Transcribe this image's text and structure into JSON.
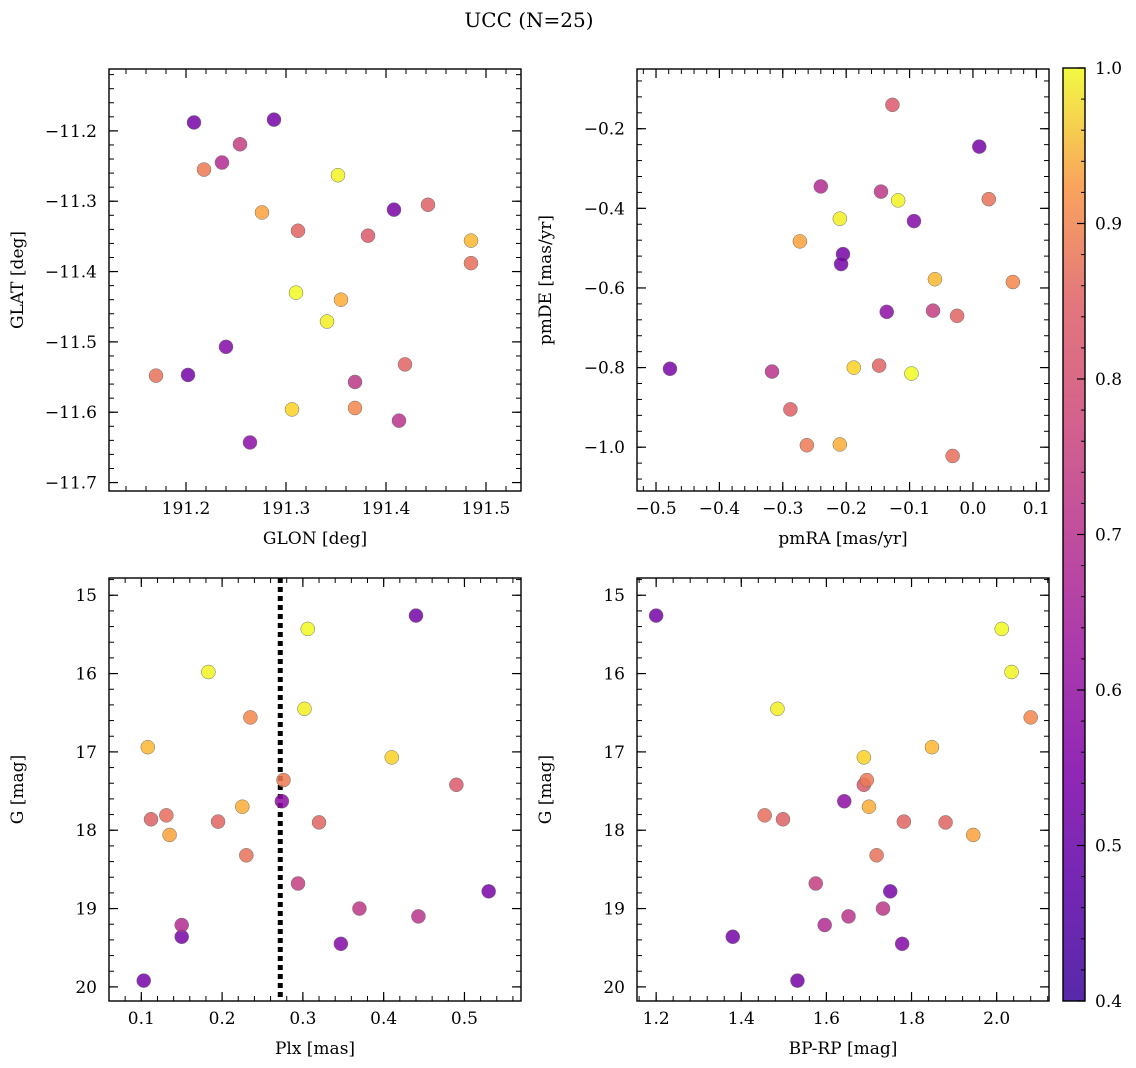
{
  "title": "UCC (N=25)",
  "chart_data": {
    "type": "scatter",
    "n_points": 25,
    "colorbar": {
      "colormap": "plasma",
      "min": 0.4,
      "max": 1.0,
      "ticks": [
        0.4,
        0.5,
        0.6,
        0.7,
        0.8,
        0.9,
        1.0
      ],
      "tick_labels": [
        "0.4",
        "0.5",
        "0.6",
        "0.7",
        "0.8",
        "0.9",
        "1.0"
      ]
    },
    "points": [
      {
        "glon": 191.208,
        "glat": -11.188,
        "pmra": -0.205,
        "pmde": -0.515,
        "plx": 0.44,
        "g": 15.26,
        "bprp": 1.2,
        "prob": 0.42
      },
      {
        "glon": 191.288,
        "glat": -11.184,
        "pmra": 0.01,
        "pmde": -0.245,
        "plx": 0.15,
        "g": 19.36,
        "bprp": 1.38,
        "prob": 0.42
      },
      {
        "glon": 191.202,
        "glat": -11.547,
        "pmra": -0.208,
        "pmde": -0.54,
        "plx": 0.103,
        "g": 19.92,
        "bprp": 1.532,
        "prob": 0.42
      },
      {
        "glon": 191.408,
        "glat": -11.312,
        "pmra": -0.478,
        "pmde": -0.803,
        "plx": 0.53,
        "g": 18.78,
        "bprp": 1.75,
        "prob": 0.43
      },
      {
        "glon": 191.24,
        "glat": -11.507,
        "pmra": -0.093,
        "pmde": -0.432,
        "plx": 0.347,
        "g": 19.45,
        "bprp": 1.778,
        "prob": 0.45
      },
      {
        "glon": 191.264,
        "glat": -11.643,
        "pmra": -0.136,
        "pmde": -0.66,
        "plx": 0.274,
        "g": 17.63,
        "bprp": 1.642,
        "prob": 0.47
      },
      {
        "glon": 191.236,
        "glat": -11.245,
        "pmra": -0.24,
        "pmde": -0.345,
        "plx": 0.15,
        "g": 19.21,
        "bprp": 1.596,
        "prob": 0.55
      },
      {
        "glon": 191.413,
        "glat": -11.612,
        "pmra": -0.317,
        "pmde": -0.81,
        "plx": 0.443,
        "g": 19.1,
        "bprp": 1.652,
        "prob": 0.57
      },
      {
        "glon": 191.369,
        "glat": -11.557,
        "pmra": -0.145,
        "pmde": -0.358,
        "plx": 0.37,
        "g": 19.0,
        "bprp": 1.733,
        "prob": 0.58
      },
      {
        "glon": 191.254,
        "glat": -11.219,
        "pmra": -0.063,
        "pmde": -0.657,
        "plx": 0.294,
        "g": 18.68,
        "bprp": 1.575,
        "prob": 0.6
      },
      {
        "glon": 191.382,
        "glat": -11.349,
        "pmra": -0.127,
        "pmde": -0.14,
        "plx": 0.49,
        "g": 17.42,
        "bprp": 1.688,
        "prob": 0.67
      },
      {
        "glon": 191.442,
        "glat": -11.305,
        "pmra": -0.288,
        "pmde": -0.905,
        "plx": 0.112,
        "g": 17.86,
        "bprp": 1.498,
        "prob": 0.69
      },
      {
        "glon": 191.419,
        "glat": -11.532,
        "pmra": -0.025,
        "pmde": -0.67,
        "plx": 0.32,
        "g": 17.9,
        "bprp": 1.88,
        "prob": 0.7
      },
      {
        "glon": 191.312,
        "glat": -11.342,
        "pmra": -0.148,
        "pmde": -0.795,
        "plx": 0.195,
        "g": 17.89,
        "bprp": 1.782,
        "prob": 0.7
      },
      {
        "glon": 191.485,
        "glat": -11.388,
        "pmra": -0.032,
        "pmde": -1.022,
        "plx": 0.131,
        "g": 17.81,
        "bprp": 1.455,
        "prob": 0.72
      },
      {
        "glon": 191.17,
        "glat": -11.548,
        "pmra": 0.025,
        "pmde": -0.377,
        "plx": 0.23,
        "g": 18.32,
        "bprp": 1.718,
        "prob": 0.73
      },
      {
        "glon": 191.218,
        "glat": -11.255,
        "pmra": -0.262,
        "pmde": -0.995,
        "plx": 0.276,
        "g": 17.36,
        "bprp": 1.695,
        "prob": 0.75
      },
      {
        "glon": 191.369,
        "glat": -11.594,
        "pmra": 0.063,
        "pmde": -0.585,
        "plx": 0.235,
        "g": 16.56,
        "bprp": 2.08,
        "prob": 0.78
      },
      {
        "glon": 191.276,
        "glat": -11.316,
        "pmra": -0.273,
        "pmde": -0.483,
        "plx": 0.135,
        "g": 18.06,
        "bprp": 1.945,
        "prob": 0.84
      },
      {
        "glon": 191.355,
        "glat": -11.44,
        "pmra": -0.21,
        "pmde": -0.993,
        "plx": 0.225,
        "g": 17.7,
        "bprp": 1.7,
        "prob": 0.86
      },
      {
        "glon": 191.485,
        "glat": -11.356,
        "pmra": -0.06,
        "pmde": -0.578,
        "plx": 0.108,
        "g": 16.94,
        "bprp": 1.848,
        "prob": 0.88
      },
      {
        "glon": 191.306,
        "glat": -11.596,
        "pmra": -0.188,
        "pmde": -0.8,
        "plx": 0.41,
        "g": 17.07,
        "bprp": 1.688,
        "prob": 0.93
      },
      {
        "glon": 191.341,
        "glat": -11.471,
        "pmra": -0.21,
        "pmde": -0.426,
        "plx": 0.302,
        "g": 16.45,
        "bprp": 1.485,
        "prob": 0.98
      },
      {
        "glon": 191.352,
        "glat": -11.263,
        "pmra": -0.118,
        "pmde": -0.38,
        "plx": 0.183,
        "g": 15.98,
        "bprp": 2.035,
        "prob": 0.99
      },
      {
        "glon": 191.31,
        "glat": -11.43,
        "pmra": -0.097,
        "pmde": -0.815,
        "plx": 0.306,
        "g": 15.43,
        "bprp": 2.012,
        "prob": 1.0
      }
    ],
    "panels": [
      {
        "id": "glon-glat",
        "xkey": "glon",
        "ykey": "glat",
        "xlabel": "GLON [deg]",
        "ylabel": "GLAT [deg]",
        "xlim": [
          191.123,
          191.535
        ],
        "ylim": [
          -11.712,
          -11.112
        ],
        "invert_y": false,
        "xticks": [
          191.2,
          191.3,
          191.4,
          191.5
        ],
        "xtick_labels": [
          "191.2",
          "191.3",
          "191.4",
          "191.5"
        ],
        "yticks": [
          -11.2,
          -11.3,
          -11.4,
          -11.5,
          -11.6,
          -11.7
        ],
        "ytick_labels": [
          "−11.2",
          "−11.3",
          "−11.4",
          "−11.5",
          "−11.6",
          "−11.7"
        ]
      },
      {
        "id": "pmra-pmde",
        "xkey": "pmra",
        "ykey": "pmde",
        "xlabel": "pmRA [mas/yr]",
        "ylabel": "pmDE [mas/yr]",
        "xlim": [
          -0.53,
          0.12
        ],
        "ylim": [
          -1.11,
          -0.05
        ],
        "invert_y": false,
        "xticks": [
          -0.5,
          -0.4,
          -0.3,
          -0.2,
          -0.1,
          0.0,
          0.1
        ],
        "xtick_labels": [
          "−0.5",
          "−0.4",
          "−0.3",
          "−0.2",
          "−0.1",
          "0.0",
          "0.1"
        ],
        "yticks": [
          -0.2,
          -0.4,
          -0.6,
          -0.8,
          -1.0
        ],
        "ytick_labels": [
          "−0.2",
          "−0.4",
          "−0.6",
          "−0.8",
          "−1.0"
        ]
      },
      {
        "id": "plx-g",
        "xkey": "plx",
        "ykey": "g",
        "xlabel": "Plx [mas]",
        "ylabel": "G [mag]",
        "xlim": [
          0.06,
          0.57
        ],
        "ylim": [
          14.78,
          20.18
        ],
        "invert_y": true,
        "vline": 0.272,
        "xticks": [
          0.1,
          0.2,
          0.3,
          0.4,
          0.5
        ],
        "xtick_labels": [
          "0.1",
          "0.2",
          "0.3",
          "0.4",
          "0.5"
        ],
        "yticks": [
          15,
          16,
          17,
          18,
          19,
          20
        ],
        "ytick_labels": [
          "15",
          "16",
          "17",
          "18",
          "19",
          "20"
        ]
      },
      {
        "id": "bprp-g",
        "xkey": "bprp",
        "ykey": "g",
        "xlabel": "BP-RP [mag]",
        "ylabel": "G [mag]",
        "xlim": [
          1.155,
          2.123
        ],
        "ylim": [
          14.78,
          20.18
        ],
        "invert_y": true,
        "xticks": [
          1.2,
          1.4,
          1.6,
          1.8,
          2.0
        ],
        "xtick_labels": [
          "1.2",
          "1.4",
          "1.6",
          "1.8",
          "2.0"
        ],
        "yticks": [
          15,
          16,
          17,
          18,
          19,
          20
        ],
        "ytick_labels": [
          "15",
          "16",
          "17",
          "18",
          "19",
          "20"
        ]
      }
    ]
  }
}
